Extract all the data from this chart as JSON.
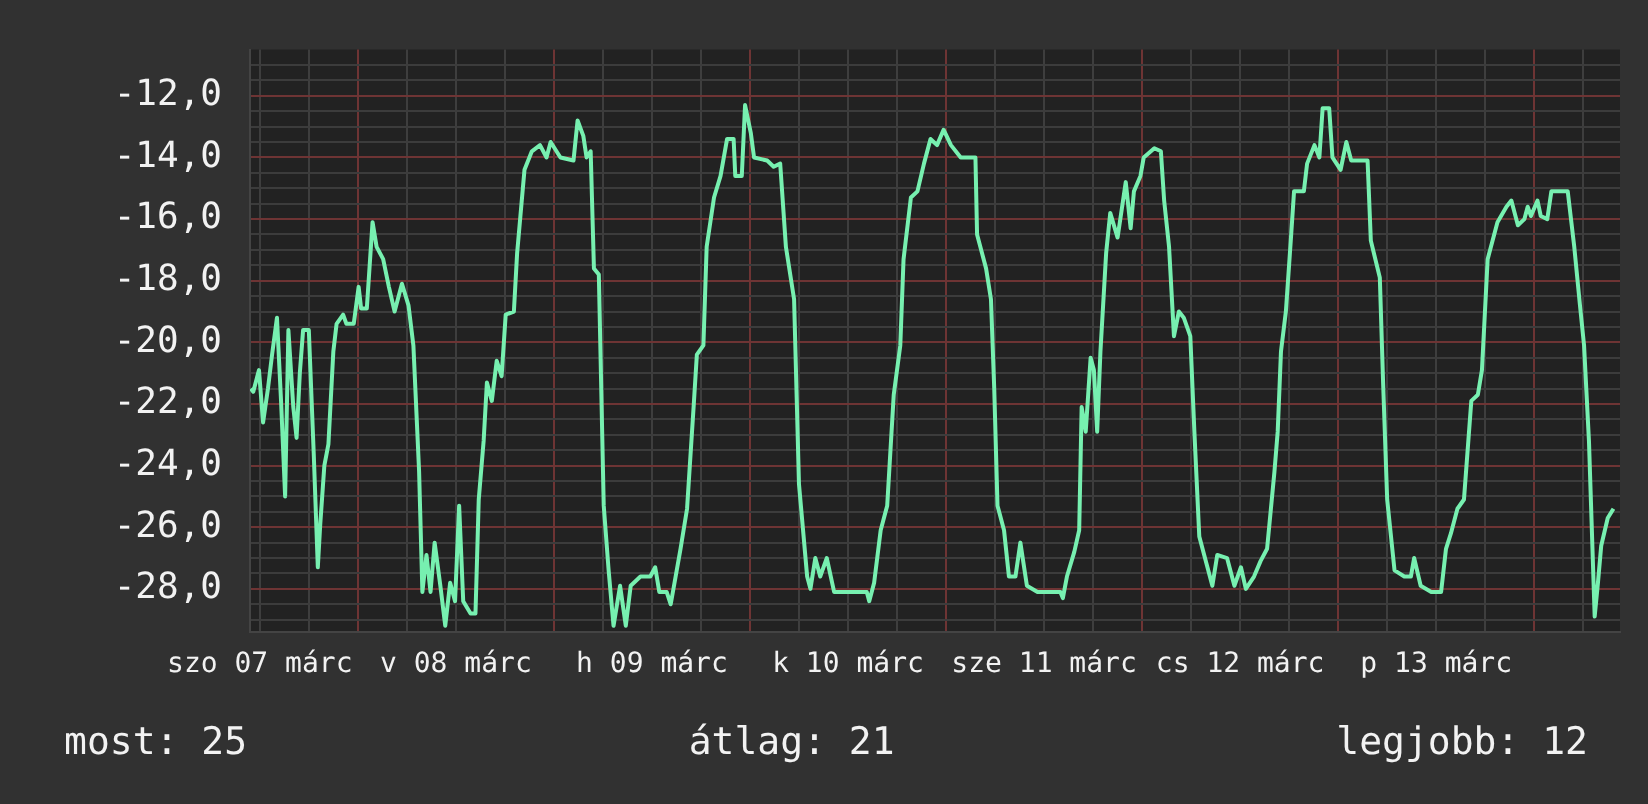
{
  "chart_data": {
    "type": "line",
    "annotations": [
      "most: 25",
      "átlag: 21",
      "legjobb: 12"
    ],
    "xlim": [
      "--03-07T10:48",
      "--03-14T10:30"
    ],
    "xticks": [
      {
        "value": "--03-07T12:00",
        "label": "szo 07 márc"
      },
      {
        "value": "--03-07T18:00",
        "label": null
      },
      {
        "value": "--03-08T00:00",
        "label": null
      },
      {
        "value": "--03-08T06:00",
        "label": null
      },
      {
        "value": "--03-08T12:00",
        "label": "v 08 márc"
      },
      {
        "value": "--03-08T18:00",
        "label": null
      },
      {
        "value": "--03-09T00:00",
        "label": null
      },
      {
        "value": "--03-09T06:00",
        "label": null
      },
      {
        "value": "--03-09T12:00",
        "label": "h 09 márc"
      },
      {
        "value": "--03-09T18:00",
        "label": null
      },
      {
        "value": "--03-10T00:00",
        "label": null
      },
      {
        "value": "--03-10T06:00",
        "label": null
      },
      {
        "value": "--03-10T12:00",
        "label": "k 10 márc"
      },
      {
        "value": "--03-10T18:00",
        "label": null
      },
      {
        "value": "--03-11T00:00",
        "label": null
      },
      {
        "value": "--03-11T06:00",
        "label": null
      },
      {
        "value": "--03-11T12:00",
        "label": "sze 11 márc"
      },
      {
        "value": "--03-11T18:00",
        "label": null
      },
      {
        "value": "--03-12T00:00",
        "label": null
      },
      {
        "value": "--03-12T06:00",
        "label": null
      },
      {
        "value": "--03-12T12:00",
        "label": "cs 12 márc"
      },
      {
        "value": "--03-12T18:00",
        "label": null
      },
      {
        "value": "--03-13T00:00",
        "label": null
      },
      {
        "value": "--03-13T06:00",
        "label": null
      },
      {
        "value": "--03-13T12:00",
        "label": "p 13 márc"
      },
      {
        "value": "--03-13T18:00",
        "label": null
      },
      {
        "value": "--03-14T00:00",
        "label": null
      },
      {
        "value": "--03-14T06:00",
        "label": null
      }
    ],
    "ylim": [
      -29.4,
      -10.5
    ],
    "yticks": [
      {
        "value": -29,
        "label": null
      },
      {
        "value": -28.5,
        "label": null
      },
      {
        "value": -28,
        "label": "-28,0"
      },
      {
        "value": -27.5,
        "label": null
      },
      {
        "value": -27,
        "label": null
      },
      {
        "value": -26.5,
        "label": null
      },
      {
        "value": -26,
        "label": "-26,0"
      },
      {
        "value": -25.5,
        "label": null
      },
      {
        "value": -25,
        "label": null
      },
      {
        "value": -24.5,
        "label": null
      },
      {
        "value": -24,
        "label": "-24,0"
      },
      {
        "value": -23.5,
        "label": null
      },
      {
        "value": -23,
        "label": null
      },
      {
        "value": -22.5,
        "label": null
      },
      {
        "value": -22,
        "label": "-22,0"
      },
      {
        "value": -21.5,
        "label": null
      },
      {
        "value": -21,
        "label": null
      },
      {
        "value": -20.5,
        "label": null
      },
      {
        "value": -20,
        "label": "-20,0"
      },
      {
        "value": -19.5,
        "label": null
      },
      {
        "value": -19,
        "label": null
      },
      {
        "value": -18.5,
        "label": null
      },
      {
        "value": -18,
        "label": "-18,0"
      },
      {
        "value": -17.5,
        "label": null
      },
      {
        "value": -17,
        "label": null
      },
      {
        "value": -16.5,
        "label": null
      },
      {
        "value": -16,
        "label": "-16,0"
      },
      {
        "value": -15.5,
        "label": null
      },
      {
        "value": -15,
        "label": null
      },
      {
        "value": -14.5,
        "label": null
      },
      {
        "value": -14,
        "label": "-14,0"
      },
      {
        "value": -13.5,
        "label": null
      },
      {
        "value": -13,
        "label": null
      },
      {
        "value": -12.5,
        "label": null
      },
      {
        "value": -12,
        "label": "-12,0"
      },
      {
        "value": -11.5,
        "label": null
      },
      {
        "value": -11,
        "label": null
      }
    ],
    "grid": true,
    "legend": false,
    "marker": "none",
    "line_style": "solid",
    "series": [
      {
        "color": "#77f0b0",
        "x": [
          "--03-07T10:54",
          "--03-07T11:12",
          "--03-07T11:54",
          "--03-07T12:24",
          "--03-07T13:00",
          "--03-07T13:30",
          "--03-07T14:06",
          "--03-07T14:36",
          "--03-07T15:06",
          "--03-07T15:30",
          "--03-07T16:06",
          "--03-07T16:30",
          "--03-07T16:54",
          "--03-07T17:18",
          "--03-07T18:00",
          "--03-07T18:36",
          "--03-07T19:06",
          "--03-07T19:24",
          "--03-07T19:54",
          "--03-07T20:24",
          "--03-07T21:00",
          "--03-07T21:24",
          "--03-07T22:12",
          "--03-07T22:36",
          "--03-07T23:30",
          "--03-08T00:06",
          "--03-08T00:24",
          "--03-08T01:06",
          "--03-08T01:30",
          "--03-08T01:48",
          "--03-08T02:18",
          "--03-08T03:06",
          "--03-08T03:48",
          "--03-08T04:30",
          "--03-08T05:24",
          "--03-08T06:12",
          "--03-08T06:48",
          "--03-08T07:30",
          "--03-08T07:54",
          "--03-08T08:24",
          "--03-08T08:54",
          "--03-08T09:24",
          "--03-08T10:06",
          "--03-08T10:42",
          "--03-08T11:18",
          "--03-08T11:54",
          "--03-08T12:24",
          "--03-08T12:54",
          "--03-08T13:48",
          "--03-08T14:24",
          "--03-08T14:48",
          "--03-08T15:24",
          "--03-08T15:48",
          "--03-08T16:24",
          "--03-08T17:00",
          "--03-08T17:36",
          "--03-08T18:06",
          "--03-08T19:06",
          "--03-08T19:30",
          "--03-08T19:54",
          "--03-08T20:24",
          "--03-08T21:18",
          "--03-08T22:18",
          "--03-08T23:06",
          "--03-08T23:36",
          "--03-09T00:48",
          "--03-09T02:24",
          "--03-09T02:54",
          "--03-09T03:36",
          "--03-09T04:00",
          "--03-09T04:30",
          "--03-09T04:54",
          "--03-09T05:30",
          "--03-09T06:06",
          "--03-09T06:42",
          "--03-09T07:18",
          "--03-09T08:06",
          "--03-09T08:48",
          "--03-09T09:24",
          "--03-09T10:36",
          "--03-09T11:48",
          "--03-09T12:24",
          "--03-09T12:54",
          "--03-09T13:48",
          "--03-09T14:18",
          "--03-09T15:30",
          "--03-09T16:18",
          "--03-09T17:06",
          "--03-09T17:30",
          "--03-09T18:18",
          "--03-09T18:42",
          "--03-09T19:36",
          "--03-09T20:24",
          "--03-09T21:12",
          "--03-09T22:00",
          "--03-09T22:12",
          "--03-09T23:00",
          "--03-09T23:24",
          "--03-10T00:06",
          "--03-10T00:30",
          "--03-10T02:06",
          "--03-10T02:54",
          "--03-10T03:42",
          "--03-10T04:24",
          "--03-10T05:24",
          "--03-10T06:00",
          "--03-10T07:00",
          "--03-10T07:24",
          "--03-10T08:00",
          "--03-10T08:36",
          "--03-10T09:24",
          "--03-10T10:18",
          "--03-10T14:18",
          "--03-10T14:36",
          "--03-10T15:12",
          "--03-10T16:00",
          "--03-10T16:48",
          "--03-10T17:36",
          "--03-10T18:24",
          "--03-10T18:48",
          "--03-10T19:42",
          "--03-10T20:30",
          "--03-10T21:18",
          "--03-10T22:06",
          "--03-10T22:54",
          "--03-10T23:42",
          "--03-11T00:36",
          "--03-11T01:48",
          "--03-11T03:36",
          "--03-11T03:48",
          "--03-11T04:54",
          "--03-11T05:30",
          "--03-11T05:54",
          "--03-11T06:18",
          "--03-11T07:06",
          "--03-11T07:42",
          "--03-11T08:30",
          "--03-11T09:06",
          "--03-11T09:54",
          "--03-11T11:12",
          "--03-11T14:00",
          "--03-11T14:18",
          "--03-11T14:48",
          "--03-11T15:42",
          "--03-11T16:18",
          "--03-11T16:36",
          "--03-11T17:06",
          "--03-11T17:42",
          "--03-11T18:06",
          "--03-11T18:30",
          "--03-11T18:54",
          "--03-11T19:36",
          "--03-11T20:06",
          "--03-11T21:00",
          "--03-11T22:00",
          "--03-11T22:36",
          "--03-11T23:00",
          "--03-11T23:48",
          "--03-12T00:12",
          "--03-12T01:30",
          "--03-12T02:18",
          "--03-12T02:42",
          "--03-12T03:18",
          "--03-12T03:54",
          "--03-12T04:30",
          "--03-12T05:06",
          "--03-12T05:54",
          "--03-12T06:24",
          "--03-12T07:00",
          "--03-12T08:00",
          "--03-12T08:36",
          "--03-12T09:12",
          "--03-12T10:24",
          "--03-12T11:18",
          "--03-12T12:06",
          "--03-12T12:42",
          "--03-12T13:42",
          "--03-12T14:30",
          "--03-12T15:18",
          "--03-12T16:12",
          "--03-12T16:36",
          "--03-12T17:00",
          "--03-12T17:36",
          "--03-12T18:12",
          "--03-12T18:36",
          "--03-12T19:48",
          "--03-12T20:12",
          "--03-12T21:06",
          "--03-12T21:42",
          "--03-12T22:06",
          "--03-12T22:54",
          "--03-12T23:18",
          "--03-13T00:18",
          "--03-13T01:00",
          "--03-13T01:36",
          "--03-13T03:36",
          "--03-13T04:00",
          "--03-13T05:06",
          "--03-13T05:30",
          "--03-13T06:00",
          "--03-13T06:54",
          "--03-13T08:06",
          "--03-13T08:54",
          "--03-13T09:18",
          "--03-13T10:06",
          "--03-13T11:24",
          "--03-13T12:36",
          "--03-13T13:12",
          "--03-13T13:48",
          "--03-13T14:36",
          "--03-13T15:24",
          "--03-13T16:18",
          "--03-13T17:06",
          "--03-13T17:36",
          "--03-13T18:18",
          "--03-13T19:30",
          "--03-13T20:36",
          "--03-13T21:12",
          "--03-13T22:00",
          "--03-13T22:48",
          "--03-13T23:12",
          "--03-13T23:36",
          "--03-14T00:24",
          "--03-14T00:48",
          "--03-14T01:36",
          "--03-14T02:06",
          "--03-14T04:06",
          "--03-14T04:54",
          "--03-14T05:36",
          "--03-14T06:06",
          "--03-14T06:42",
          "--03-14T07:24",
          "--03-14T07:48",
          "--03-14T08:12",
          "--03-14T09:00",
          "--03-14T09:42"
        ],
        "values": [
          -21.5,
          -21.6,
          -20.9,
          -22.6,
          -21.5,
          -20.4,
          -19.2,
          -21.9,
          -25.0,
          -19.6,
          -22.1,
          -23.1,
          -21.0,
          -19.6,
          -19.6,
          -23.6,
          -27.3,
          -25.9,
          -24.0,
          -23.3,
          -20.3,
          -19.4,
          -19.1,
          -19.4,
          -19.4,
          -18.2,
          -18.9,
          -18.9,
          -17.3,
          -16.1,
          -16.9,
          -17.3,
          -18.2,
          -19.0,
          -18.1,
          -18.8,
          -20.1,
          -24.2,
          -28.1,
          -26.9,
          -28.1,
          -26.5,
          -27.9,
          -29.2,
          -27.8,
          -28.4,
          -25.3,
          -28.4,
          -28.8,
          -28.8,
          -25.1,
          -23.2,
          -21.3,
          -21.9,
          -20.6,
          -21.1,
          -19.1,
          -19.0,
          -17.1,
          -15.9,
          -14.4,
          -13.8,
          -13.6,
          -14.0,
          -13.5,
          -14.0,
          -14.1,
          -12.8,
          -13.3,
          -14.0,
          -13.8,
          -17.6,
          -17.8,
          -25.3,
          -27.4,
          -29.2,
          -27.9,
          -29.2,
          -27.9,
          -27.6,
          -27.6,
          -27.3,
          -28.1,
          -28.1,
          -28.5,
          -26.7,
          -25.4,
          -22.1,
          -20.4,
          -20.1,
          -16.9,
          -15.3,
          -14.6,
          -13.4,
          -13.4,
          -14.6,
          -14.6,
          -12.3,
          -13.2,
          -14.0,
          -14.1,
          -14.3,
          -14.2,
          -16.9,
          -18.6,
          -24.6,
          -27.6,
          -28.0,
          -27.0,
          -27.6,
          -27.0,
          -28.1,
          -28.1,
          -28.4,
          -27.8,
          -26.1,
          -25.3,
          -21.7,
          -20.1,
          -17.3,
          -15.3,
          -15.1,
          -14.2,
          -13.4,
          -13.6,
          -13.1,
          -13.6,
          -14.0,
          -14.0,
          -16.5,
          -17.6,
          -18.6,
          -21.5,
          -25.3,
          -26.1,
          -27.6,
          -27.6,
          -26.5,
          -27.9,
          -28.1,
          -28.1,
          -28.3,
          -27.6,
          -26.8,
          -26.1,
          -22.1,
          -22.9,
          -20.5,
          -20.9,
          -22.9,
          -20.3,
          -17.1,
          -15.8,
          -16.6,
          -14.8,
          -16.3,
          -15.1,
          -14.6,
          -14.0,
          -13.7,
          -13.8,
          -15.4,
          -16.9,
          -19.8,
          -19.0,
          -19.2,
          -19.8,
          -22.9,
          -26.3,
          -27.3,
          -27.9,
          -26.9,
          -27.0,
          -27.9,
          -27.3,
          -28.0,
          -27.6,
          -27.1,
          -26.7,
          -24.2,
          -22.9,
          -20.3,
          -19.0,
          -16.7,
          -15.1,
          -15.1,
          -14.2,
          -13.6,
          -14.0,
          -12.4,
          -12.4,
          -14.0,
          -14.4,
          -13.5,
          -14.1,
          -14.1,
          -16.7,
          -17.9,
          -21.3,
          -25.1,
          -27.4,
          -27.6,
          -27.6,
          -27.0,
          -27.9,
          -28.1,
          -28.1,
          -26.7,
          -26.2,
          -25.4,
          -25.1,
          -21.9,
          -21.7,
          -20.9,
          -17.3,
          -16.1,
          -15.6,
          -15.4,
          -16.2,
          -16.0,
          -15.6,
          -15.9,
          -15.4,
          -15.9,
          -16.0,
          -15.1,
          -15.1,
          -16.9,
          -18.8,
          -20.1,
          -23.2,
          -28.9,
          -27.8,
          -26.6,
          -25.7,
          -25.4
        ]
      }
    ]
  }
}
